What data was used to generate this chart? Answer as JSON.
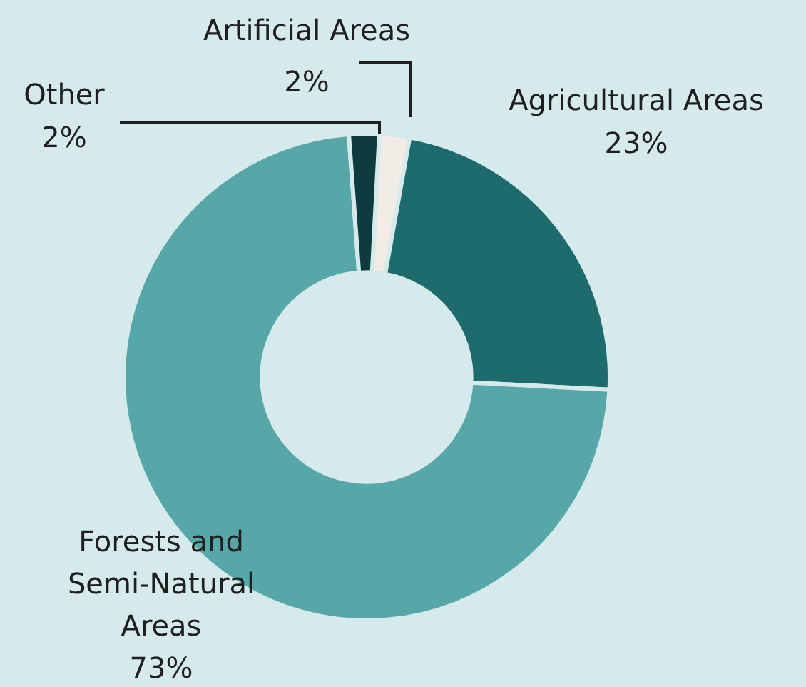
{
  "chart_data": {
    "type": "donut",
    "categories": [
      "Artificial Areas",
      "Agricultural Areas",
      "Forests and Semi-Natural Areas",
      "Other"
    ],
    "values": [
      2,
      23,
      73,
      2
    ],
    "value_labels": [
      "2%",
      "23%",
      "73%",
      "2%"
    ],
    "colors": [
      "#f1ede6",
      "#1e6b6e",
      "#58a7a8",
      "#0e3b3d"
    ],
    "legend": false
  }
}
